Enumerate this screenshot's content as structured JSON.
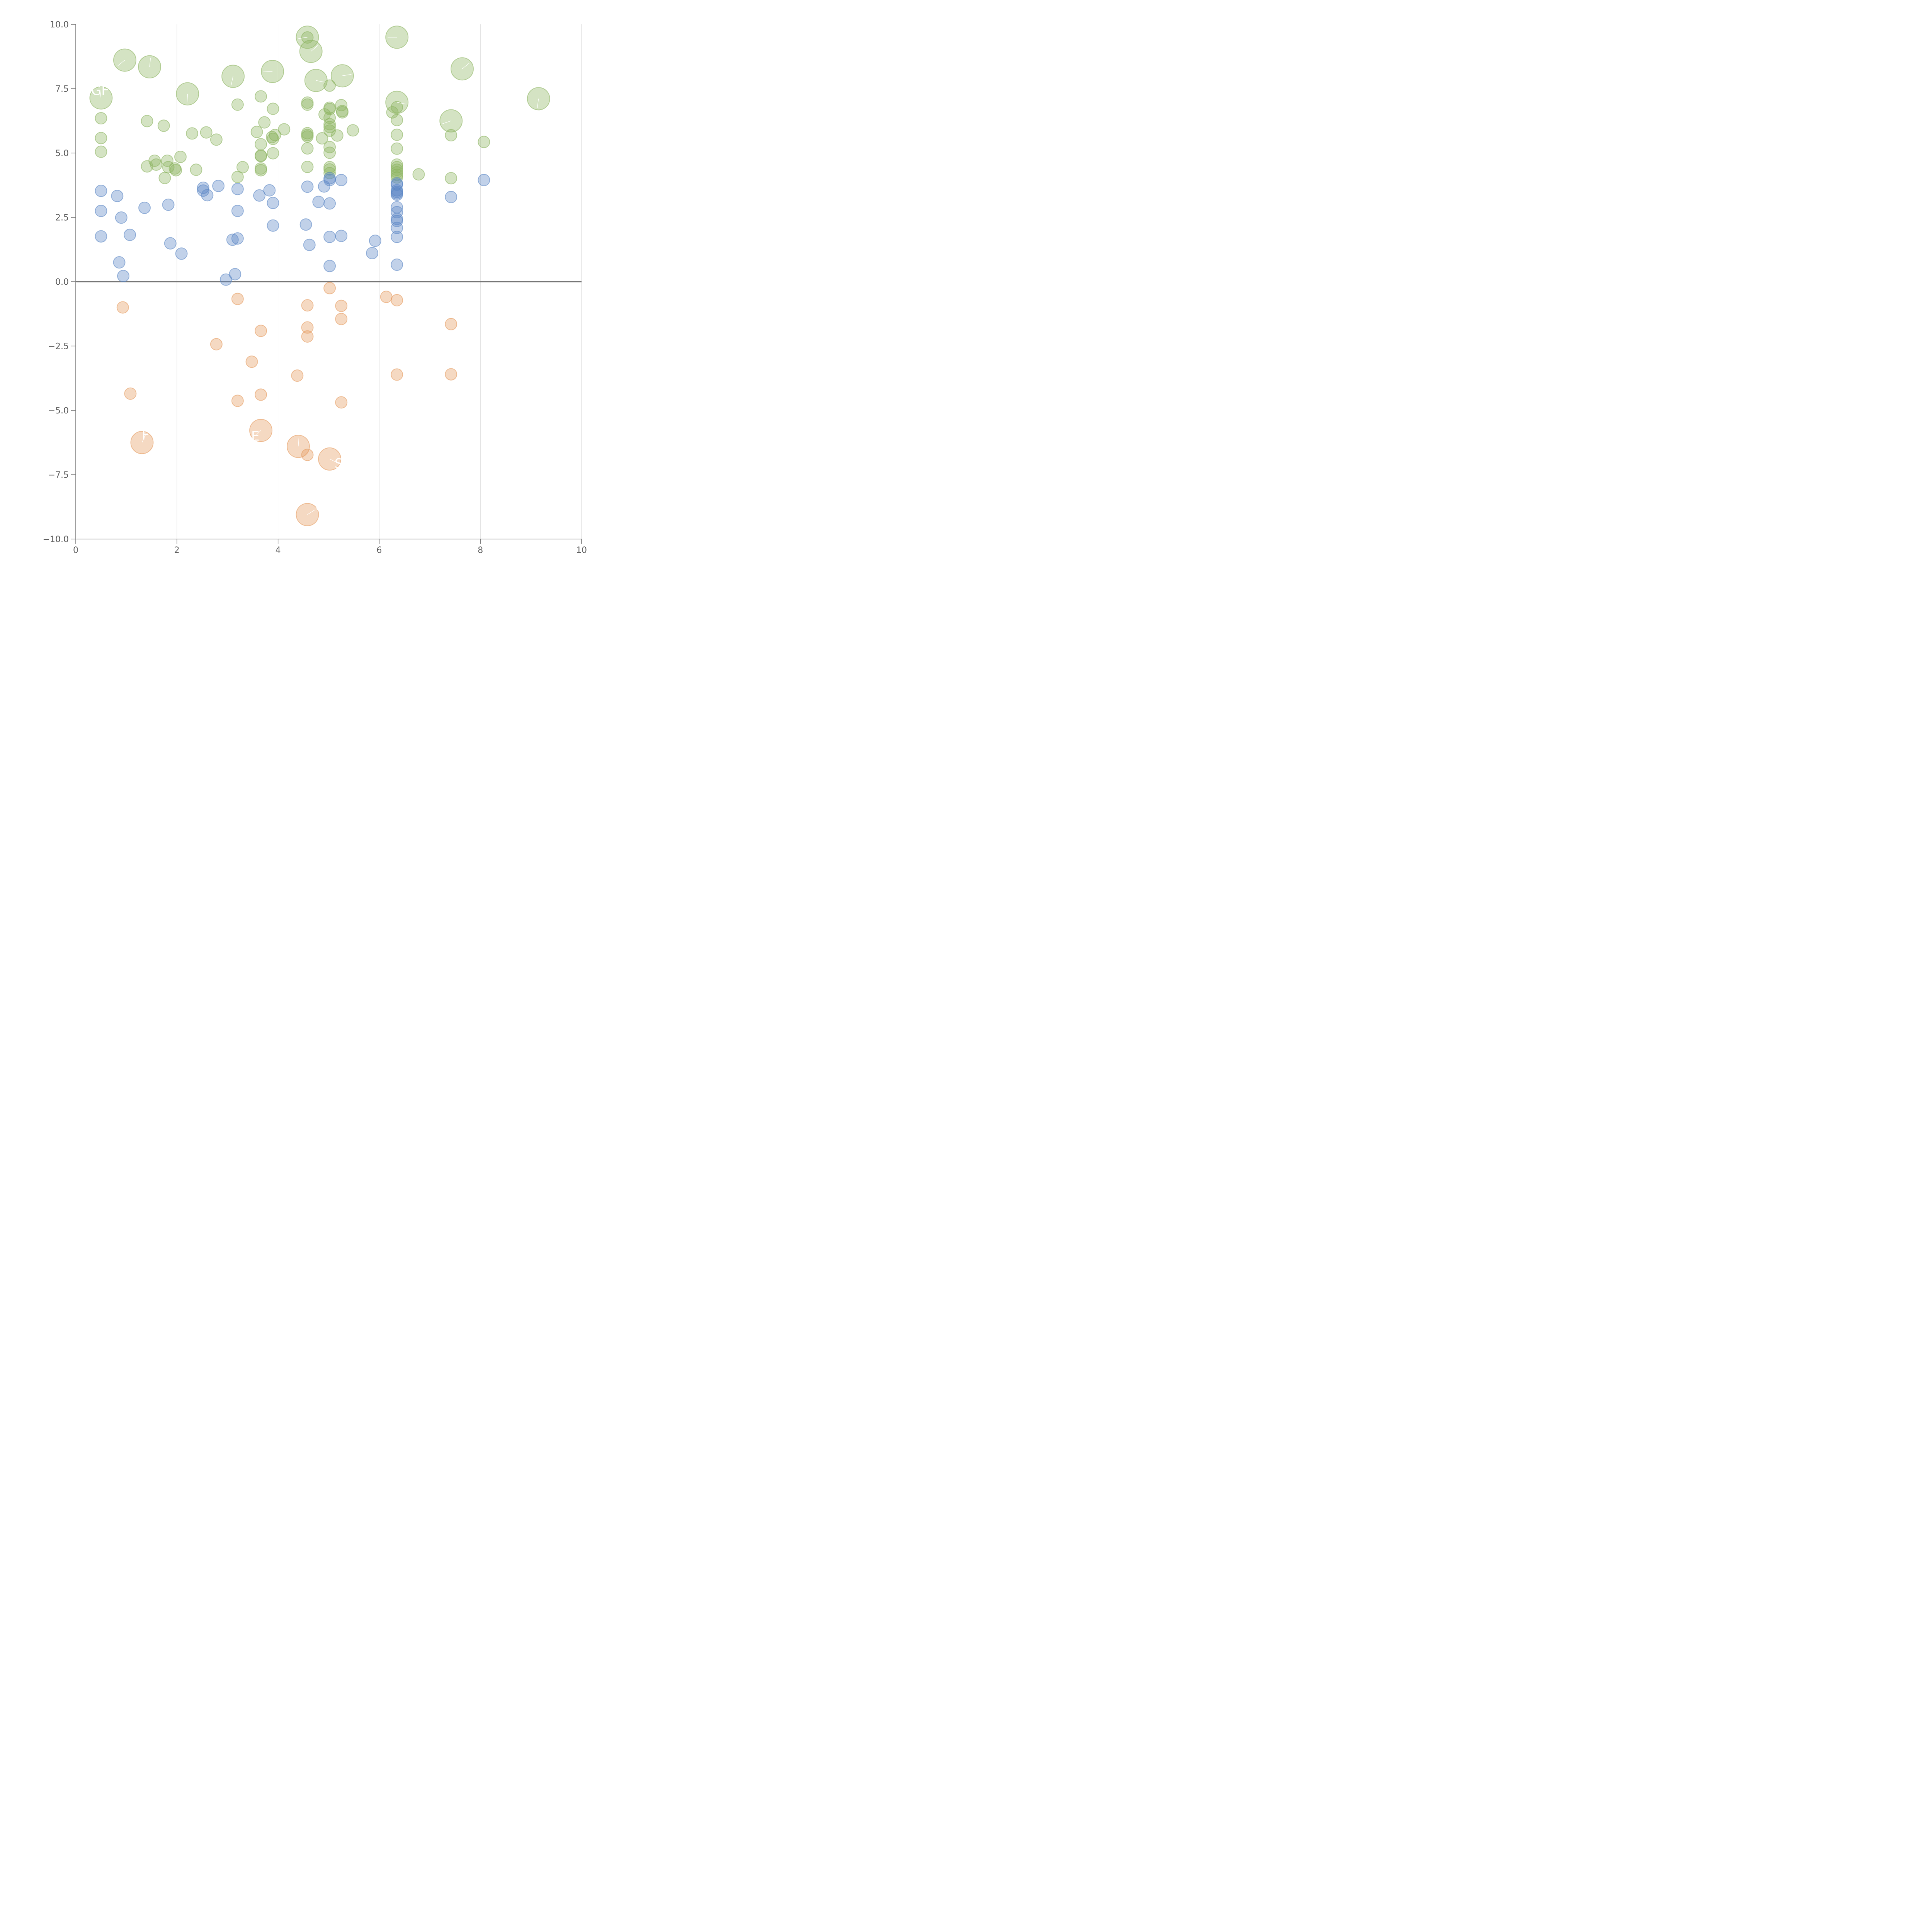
{
  "chart_data": {
    "type": "scatter",
    "title": "",
    "xlabel": "",
    "ylabel": "",
    "xlim": [
      0,
      10
    ],
    "ylim": [
      -10,
      10
    ],
    "x_ticks": [
      "0",
      "2",
      "4",
      "6",
      "8",
      "10"
    ],
    "x_tick_values": [
      0,
      2,
      4,
      6,
      8,
      10
    ],
    "y_ticks": [
      "10.0",
      "7.5",
      "5.0",
      "2.5",
      "0.0",
      "−2.5",
      "−5.0",
      "−7.5",
      "−10.0"
    ],
    "y_tick_values": [
      10,
      7.5,
      5,
      2.5,
      0,
      -2.5,
      -5,
      -7.5,
      -10
    ],
    "grid": {
      "vertical": true,
      "horizontal": false
    },
    "zero_line": true,
    "colors": {
      "green": "#8db560",
      "blue": "#5b87c5",
      "orange": "#e59a5f"
    },
    "series": [
      {
        "color": "green",
        "points": [
          {
            "x": 0.5,
            "y": 6.35
          },
          {
            "x": 0.5,
            "y": 5.58
          },
          {
            "x": 0.5,
            "y": 5.05
          },
          {
            "x": 1.41,
            "y": 6.24
          },
          {
            "x": 1.41,
            "y": 4.48
          },
          {
            "x": 1.56,
            "y": 4.7
          },
          {
            "x": 1.59,
            "y": 4.55
          },
          {
            "x": 1.74,
            "y": 6.06
          },
          {
            "x": 1.76,
            "y": 4.03
          },
          {
            "x": 1.81,
            "y": 4.7
          },
          {
            "x": 1.83,
            "y": 4.45
          },
          {
            "x": 1.96,
            "y": 4.4
          },
          {
            "x": 1.98,
            "y": 4.33
          },
          {
            "x": 2.07,
            "y": 4.85
          },
          {
            "x": 2.3,
            "y": 5.76
          },
          {
            "x": 2.38,
            "y": 4.35
          },
          {
            "x": 2.58,
            "y": 5.8
          },
          {
            "x": 2.78,
            "y": 5.52
          },
          {
            "x": 3.2,
            "y": 6.88
          },
          {
            "x": 3.2,
            "y": 4.07
          },
          {
            "x": 3.3,
            "y": 4.45
          },
          {
            "x": 3.58,
            "y": 5.82
          },
          {
            "x": 3.66,
            "y": 7.2
          },
          {
            "x": 3.66,
            "y": 5.34
          },
          {
            "x": 3.66,
            "y": 4.88
          },
          {
            "x": 3.66,
            "y": 4.9
          },
          {
            "x": 3.66,
            "y": 4.4
          },
          {
            "x": 3.66,
            "y": 4.33
          },
          {
            "x": 3.73,
            "y": 6.19
          },
          {
            "x": 3.88,
            "y": 5.62
          },
          {
            "x": 3.9,
            "y": 5.55
          },
          {
            "x": 3.9,
            "y": 6.72
          },
          {
            "x": 3.9,
            "y": 4.99
          },
          {
            "x": 3.94,
            "y": 5.7
          },
          {
            "x": 4.12,
            "y": 5.92
          },
          {
            "x": 4.58,
            "y": 6.96
          },
          {
            "x": 4.58,
            "y": 6.88
          },
          {
            "x": 4.58,
            "y": 5.77
          },
          {
            "x": 4.58,
            "y": 5.7
          },
          {
            "x": 4.58,
            "y": 5.64
          },
          {
            "x": 4.58,
            "y": 5.18
          },
          {
            "x": 4.58,
            "y": 4.46
          },
          {
            "x": 4.87,
            "y": 5.57
          },
          {
            "x": 4.92,
            "y": 6.5
          },
          {
            "x": 5.02,
            "y": 7.62
          },
          {
            "x": 5.02,
            "y": 6.76
          },
          {
            "x": 5.02,
            "y": 6.71
          },
          {
            "x": 5.02,
            "y": 6.37
          },
          {
            "x": 5.02,
            "y": 6.12
          },
          {
            "x": 5.02,
            "y": 6.01
          },
          {
            "x": 5.02,
            "y": 5.87
          },
          {
            "x": 5.02,
            "y": 5.23
          },
          {
            "x": 5.02,
            "y": 5.01
          },
          {
            "x": 5.02,
            "y": 4.45
          },
          {
            "x": 5.02,
            "y": 4.36
          },
          {
            "x": 5.02,
            "y": 4.22
          },
          {
            "x": 5.17,
            "y": 5.68
          },
          {
            "x": 5.25,
            "y": 6.86
          },
          {
            "x": 5.27,
            "y": 6.63
          },
          {
            "x": 5.27,
            "y": 6.58
          },
          {
            "x": 5.48,
            "y": 5.88
          },
          {
            "x": 6.26,
            "y": 6.58
          },
          {
            "x": 6.35,
            "y": 6.78
          },
          {
            "x": 6.35,
            "y": 6.28
          },
          {
            "x": 6.35,
            "y": 5.71
          },
          {
            "x": 6.35,
            "y": 5.17
          },
          {
            "x": 6.35,
            "y": 4.55
          },
          {
            "x": 6.35,
            "y": 4.45
          },
          {
            "x": 6.35,
            "y": 4.35
          },
          {
            "x": 6.35,
            "y": 4.25
          },
          {
            "x": 6.35,
            "y": 4.15
          },
          {
            "x": 6.35,
            "y": 4.05
          },
          {
            "x": 6.78,
            "y": 4.17
          },
          {
            "x": 7.42,
            "y": 5.69
          },
          {
            "x": 7.42,
            "y": 4.02
          },
          {
            "x": 8.07,
            "y": 5.43
          },
          {
            "x": 4.58,
            "y": 9.49
          }
        ]
      },
      {
        "color": "blue",
        "points": [
          {
            "x": 0.5,
            "y": 3.53
          },
          {
            "x": 0.5,
            "y": 2.75
          },
          {
            "x": 0.5,
            "y": 1.76
          },
          {
            "x": 0.82,
            "y": 3.33
          },
          {
            "x": 0.86,
            "y": 0.75
          },
          {
            "x": 0.9,
            "y": 2.49
          },
          {
            "x": 0.94,
            "y": 0.22
          },
          {
            "x": 1.07,
            "y": 1.82
          },
          {
            "x": 1.36,
            "y": 2.87
          },
          {
            "x": 1.83,
            "y": 2.99
          },
          {
            "x": 1.87,
            "y": 1.49
          },
          {
            "x": 2.09,
            "y": 1.09
          },
          {
            "x": 2.52,
            "y": 3.65
          },
          {
            "x": 2.52,
            "y": 3.54
          },
          {
            "x": 2.6,
            "y": 3.36
          },
          {
            "x": 2.82,
            "y": 3.72
          },
          {
            "x": 2.97,
            "y": 0.08
          },
          {
            "x": 3.1,
            "y": 1.63
          },
          {
            "x": 3.15,
            "y": 0.29
          },
          {
            "x": 3.2,
            "y": 3.6
          },
          {
            "x": 3.2,
            "y": 2.75
          },
          {
            "x": 3.2,
            "y": 1.68
          },
          {
            "x": 3.63,
            "y": 3.35
          },
          {
            "x": 3.83,
            "y": 3.55
          },
          {
            "x": 3.9,
            "y": 3.06
          },
          {
            "x": 3.9,
            "y": 2.18
          },
          {
            "x": 4.55,
            "y": 2.22
          },
          {
            "x": 4.58,
            "y": 3.69
          },
          {
            "x": 4.62,
            "y": 1.43
          },
          {
            "x": 4.8,
            "y": 3.1
          },
          {
            "x": 4.91,
            "y": 3.7
          },
          {
            "x": 5.02,
            "y": 4.02
          },
          {
            "x": 5.02,
            "y": 3.95
          },
          {
            "x": 5.02,
            "y": 3.04
          },
          {
            "x": 5.02,
            "y": 1.74
          },
          {
            "x": 5.02,
            "y": 0.61
          },
          {
            "x": 5.25,
            "y": 3.95
          },
          {
            "x": 5.25,
            "y": 1.78
          },
          {
            "x": 5.86,
            "y": 1.11
          },
          {
            "x": 5.92,
            "y": 1.59
          },
          {
            "x": 6.35,
            "y": 3.82
          },
          {
            "x": 6.35,
            "y": 3.77
          },
          {
            "x": 6.35,
            "y": 3.55
          },
          {
            "x": 6.35,
            "y": 3.49
          },
          {
            "x": 6.35,
            "y": 3.43
          },
          {
            "x": 6.35,
            "y": 3.38
          },
          {
            "x": 6.35,
            "y": 2.89
          },
          {
            "x": 6.35,
            "y": 2.7
          },
          {
            "x": 6.35,
            "y": 2.44
          },
          {
            "x": 6.35,
            "y": 2.36
          },
          {
            "x": 6.35,
            "y": 2.09
          },
          {
            "x": 6.35,
            "y": 1.74
          },
          {
            "x": 6.35,
            "y": 0.66
          },
          {
            "x": 7.42,
            "y": 3.29
          },
          {
            "x": 8.07,
            "y": 3.95
          }
        ]
      },
      {
        "color": "orange",
        "points": [
          {
            "x": 0.93,
            "y": -1.0
          },
          {
            "x": 1.08,
            "y": -4.35
          },
          {
            "x": 2.78,
            "y": -2.43
          },
          {
            "x": 3.2,
            "y": -0.67
          },
          {
            "x": 3.2,
            "y": -4.63
          },
          {
            "x": 3.48,
            "y": -3.11
          },
          {
            "x": 3.66,
            "y": -1.91
          },
          {
            "x": 3.66,
            "y": -4.39
          },
          {
            "x": 4.38,
            "y": -3.65
          },
          {
            "x": 4.58,
            "y": -0.92
          },
          {
            "x": 4.58,
            "y": -1.78
          },
          {
            "x": 4.58,
            "y": -2.13
          },
          {
            "x": 4.58,
            "y": -6.73
          },
          {
            "x": 5.02,
            "y": -0.25
          },
          {
            "x": 5.25,
            "y": -0.94
          },
          {
            "x": 5.25,
            "y": -1.45
          },
          {
            "x": 5.25,
            "y": -4.69
          },
          {
            "x": 6.14,
            "y": -0.59
          },
          {
            "x": 6.35,
            "y": -0.72
          },
          {
            "x": 6.35,
            "y": -3.61
          },
          {
            "x": 7.42,
            "y": -1.65
          },
          {
            "x": 7.42,
            "y": -3.6
          }
        ]
      }
    ],
    "bubbles": [
      {
        "color": "green",
        "x": 0.5,
        "y": 7.14,
        "label": "GF",
        "lx": 0.48,
        "ly": 7.44
      },
      {
        "color": "green",
        "x": 0.97,
        "y": 8.61,
        "label": "",
        "lx": 0.8,
        "ly": 8.34
      },
      {
        "color": "green",
        "x": 1.46,
        "y": 8.35,
        "label": "",
        "lx": 1.48,
        "ly": 8.7
      },
      {
        "color": "green",
        "x": 2.21,
        "y": 7.3,
        "label": "",
        "lx": 2.22,
        "ly": 6.93
      },
      {
        "color": "green",
        "x": 3.11,
        "y": 7.98,
        "label": "",
        "lx": 3.07,
        "ly": 7.6
      },
      {
        "color": "green",
        "x": 3.89,
        "y": 8.17,
        "label": "",
        "lx": 3.68,
        "ly": 8.15
      },
      {
        "color": "green",
        "x": 4.58,
        "y": 9.5,
        "label": "",
        "lx": 4.36,
        "ly": 9.43
      },
      {
        "color": "green",
        "x": 4.65,
        "y": 8.95,
        "label": "",
        "lx": 4.81,
        "ly": 9.22
      },
      {
        "color": "green",
        "x": 4.75,
        "y": 7.82,
        "label": "",
        "lx": 5.15,
        "ly": 7.66
      },
      {
        "color": "green",
        "x": 5.27,
        "y": 8.0,
        "label": "",
        "lx": 5.58,
        "ly": 8.1
      },
      {
        "color": "green",
        "x": 6.35,
        "y": 9.5,
        "label": "",
        "lx": 5.8,
        "ly": 9.5
      },
      {
        "color": "green",
        "x": 6.35,
        "y": 6.97,
        "label": "",
        "lx": 6.65,
        "ly": 6.85
      },
      {
        "color": "green",
        "x": 7.42,
        "y": 6.25,
        "label": "",
        "lx": 7.12,
        "ly": 6.05
      },
      {
        "color": "green",
        "x": 7.64,
        "y": 8.27,
        "label": "",
        "lx": 7.81,
        "ly": 8.54
      },
      {
        "color": "green",
        "x": 9.15,
        "y": 7.11,
        "label": "",
        "lx": 9.12,
        "ly": 6.68
      },
      {
        "color": "orange",
        "x": 1.31,
        "y": -6.25,
        "label": "F",
        "lx": 1.38,
        "ly": -5.95
      },
      {
        "color": "orange",
        "x": 3.66,
        "y": -5.78,
        "label": "E",
        "lx": 3.55,
        "ly": -6.0
      },
      {
        "color": "orange",
        "x": 4.4,
        "y": -6.4,
        "label": "",
        "lx": 4.41,
        "ly": -6.09
      },
      {
        "color": "orange",
        "x": 5.02,
        "y": -6.89,
        "label": "S",
        "lx": 5.2,
        "ly": -7.06
      },
      {
        "color": "orange",
        "x": 4.58,
        "y": -9.05,
        "label": "C",
        "lx": 4.83,
        "ly": -8.74
      }
    ]
  }
}
